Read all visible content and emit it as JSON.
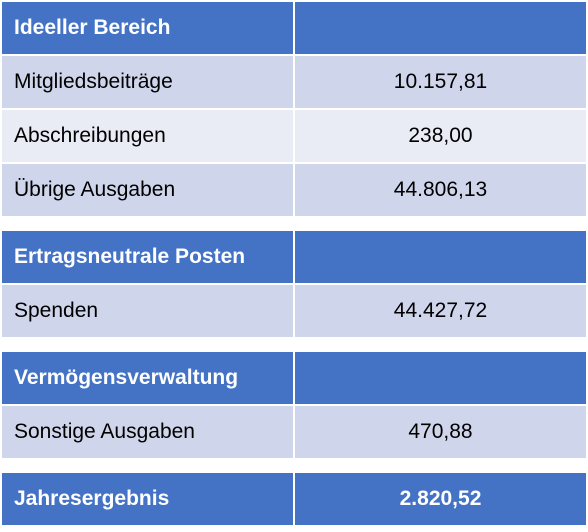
{
  "colors": {
    "header": "#4472c4",
    "band_dark": "#cfd5ea",
    "band_light": "#e9ebf5"
  },
  "sections": {
    "ideeller": {
      "title": "Ideeller Bereich",
      "rows": [
        {
          "label": "Mitgliedsbeiträge",
          "value": "10.157,81"
        },
        {
          "label": "Abschreibungen",
          "value": "238,00"
        },
        {
          "label": "Übrige Ausgaben",
          "value": "44.806,13"
        }
      ]
    },
    "ertragsneutral": {
      "title": "Ertragsneutrale Posten",
      "rows": [
        {
          "label": "Spenden",
          "value": "44.427,72"
        }
      ]
    },
    "vermoegen": {
      "title": "Vermögensverwaltung",
      "rows": [
        {
          "label": "Sonstige Ausgaben",
          "value": "470,88"
        }
      ]
    },
    "ergebnis": {
      "label": "Jahresergebnis",
      "value": "2.820,52"
    }
  }
}
